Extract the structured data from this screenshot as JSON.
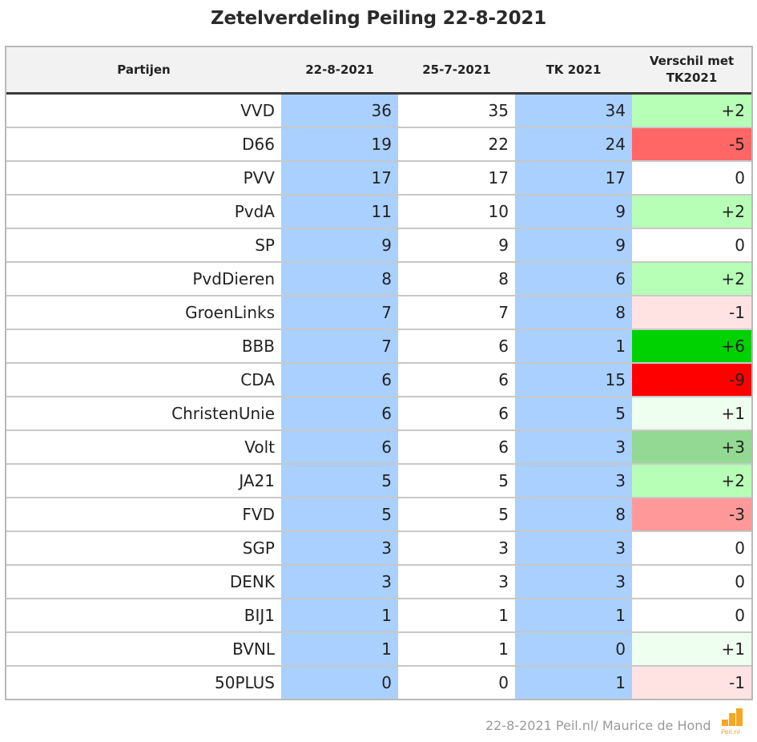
{
  "chart_data": {
    "type": "table",
    "title": "Zetelverdeling Peiling 22-8-2021",
    "columns": [
      "Partijen",
      "22-8-2021",
      "25-7-2021",
      "TK 2021",
      "Verschil met TK2021"
    ],
    "rows": [
      {
        "party": "VVD",
        "p1": "36",
        "p2": "35",
        "tk": "34",
        "diff": "+2",
        "diff_color": "#b7ffb7"
      },
      {
        "party": "D66",
        "p1": "19",
        "p2": "22",
        "tk": "24",
        "diff": "-5",
        "diff_color": "#ff6666"
      },
      {
        "party": "PVV",
        "p1": "17",
        "p2": "17",
        "tk": "17",
        "diff": "0",
        "diff_color": "#ffffff"
      },
      {
        "party": "PvdA",
        "p1": "11",
        "p2": "10",
        "tk": "9",
        "diff": "+2",
        "diff_color": "#b7ffb7"
      },
      {
        "party": "SP",
        "p1": "9",
        "p2": "9",
        "tk": "9",
        "diff": "0",
        "diff_color": "#ffffff"
      },
      {
        "party": "PvdDieren",
        "p1": "8",
        "p2": "8",
        "tk": "6",
        "diff": "+2",
        "diff_color": "#b7ffb7"
      },
      {
        "party": "GroenLinks",
        "p1": "7",
        "p2": "7",
        "tk": "8",
        "diff": "-1",
        "diff_color": "#ffe3e3"
      },
      {
        "party": "BBB",
        "p1": "7",
        "p2": "6",
        "tk": "1",
        "diff": "+6",
        "diff_color": "#00d100"
      },
      {
        "party": "CDA",
        "p1": "6",
        "p2": "6",
        "tk": "15",
        "diff": "-9",
        "diff_color": "#ff0000"
      },
      {
        "party": "ChristenUnie",
        "p1": "6",
        "p2": "6",
        "tk": "5",
        "diff": "+1",
        "diff_color": "#efffef"
      },
      {
        "party": "Volt",
        "p1": "6",
        "p2": "6",
        "tk": "3",
        "diff": "+3",
        "diff_color": "#93d993"
      },
      {
        "party": "JA21",
        "p1": "5",
        "p2": "5",
        "tk": "3",
        "diff": "+2",
        "diff_color": "#b7ffb7"
      },
      {
        "party": "FVD",
        "p1": "5",
        "p2": "5",
        "tk": "8",
        "diff": "-3",
        "diff_color": "#ff9999"
      },
      {
        "party": "SGP",
        "p1": "3",
        "p2": "3",
        "tk": "3",
        "diff": "0",
        "diff_color": "#ffffff"
      },
      {
        "party": "DENK",
        "p1": "3",
        "p2": "3",
        "tk": "3",
        "diff": "0",
        "diff_color": "#ffffff"
      },
      {
        "party": "BIJ1",
        "p1": "1",
        "p2": "1",
        "tk": "1",
        "diff": "0",
        "diff_color": "#ffffff"
      },
      {
        "party": "BVNL",
        "p1": "1",
        "p2": "1",
        "tk": "0",
        "diff": "+1",
        "diff_color": "#efffef"
      },
      {
        "party": "50PLUS",
        "p1": "0",
        "p2": "0",
        "tk": "1",
        "diff": "-1",
        "diff_color": "#ffe3e3"
      }
    ]
  },
  "footer": "22-8-2021 Peil.nl/ Maurice de Hond",
  "logo_text": "Peil.nl",
  "colors": {
    "poll_highlight": "#a9d0ff",
    "logo_orange": "#f5a623"
  }
}
